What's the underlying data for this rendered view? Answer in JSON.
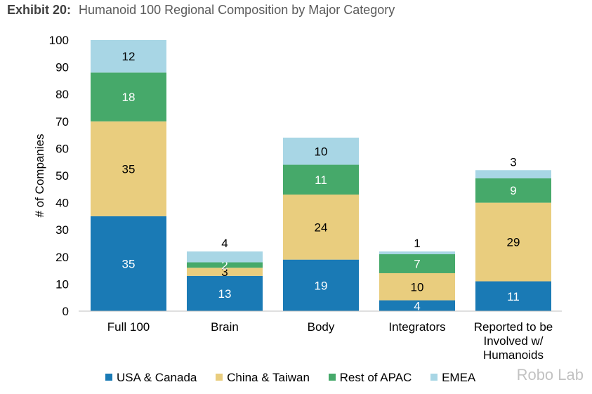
{
  "header": {
    "exhibit": "Exhibit 20:",
    "title": "Humanoid 100 Regional Composition by Major Category"
  },
  "chart_data": {
    "type": "bar",
    "stacked": true,
    "ylabel": "# of Companies",
    "ylim": [
      0,
      100
    ],
    "yticks": [
      0,
      10,
      20,
      30,
      40,
      50,
      60,
      70,
      80,
      90,
      100
    ],
    "categories": [
      "Full 100",
      "Brain",
      "Body",
      "Integrators",
      "Reported to be Involved w/ Humanoids"
    ],
    "series": [
      {
        "name": "USA & Canada",
        "color": "#1a7ab5",
        "values": [
          35,
          13,
          19,
          4,
          11
        ]
      },
      {
        "name": "China & Taiwan",
        "color": "#e9cd7e",
        "values": [
          35,
          3,
          24,
          10,
          29
        ]
      },
      {
        "name": "Rest of APAC",
        "color": "#46a96a",
        "values": [
          18,
          2,
          11,
          7,
          9
        ]
      },
      {
        "name": "EMEA",
        "color": "#a8d6e5",
        "values": [
          12,
          4,
          10,
          1,
          3
        ]
      }
    ],
    "legend": "bottom",
    "grid": false
  },
  "watermark": "Robo Lab"
}
